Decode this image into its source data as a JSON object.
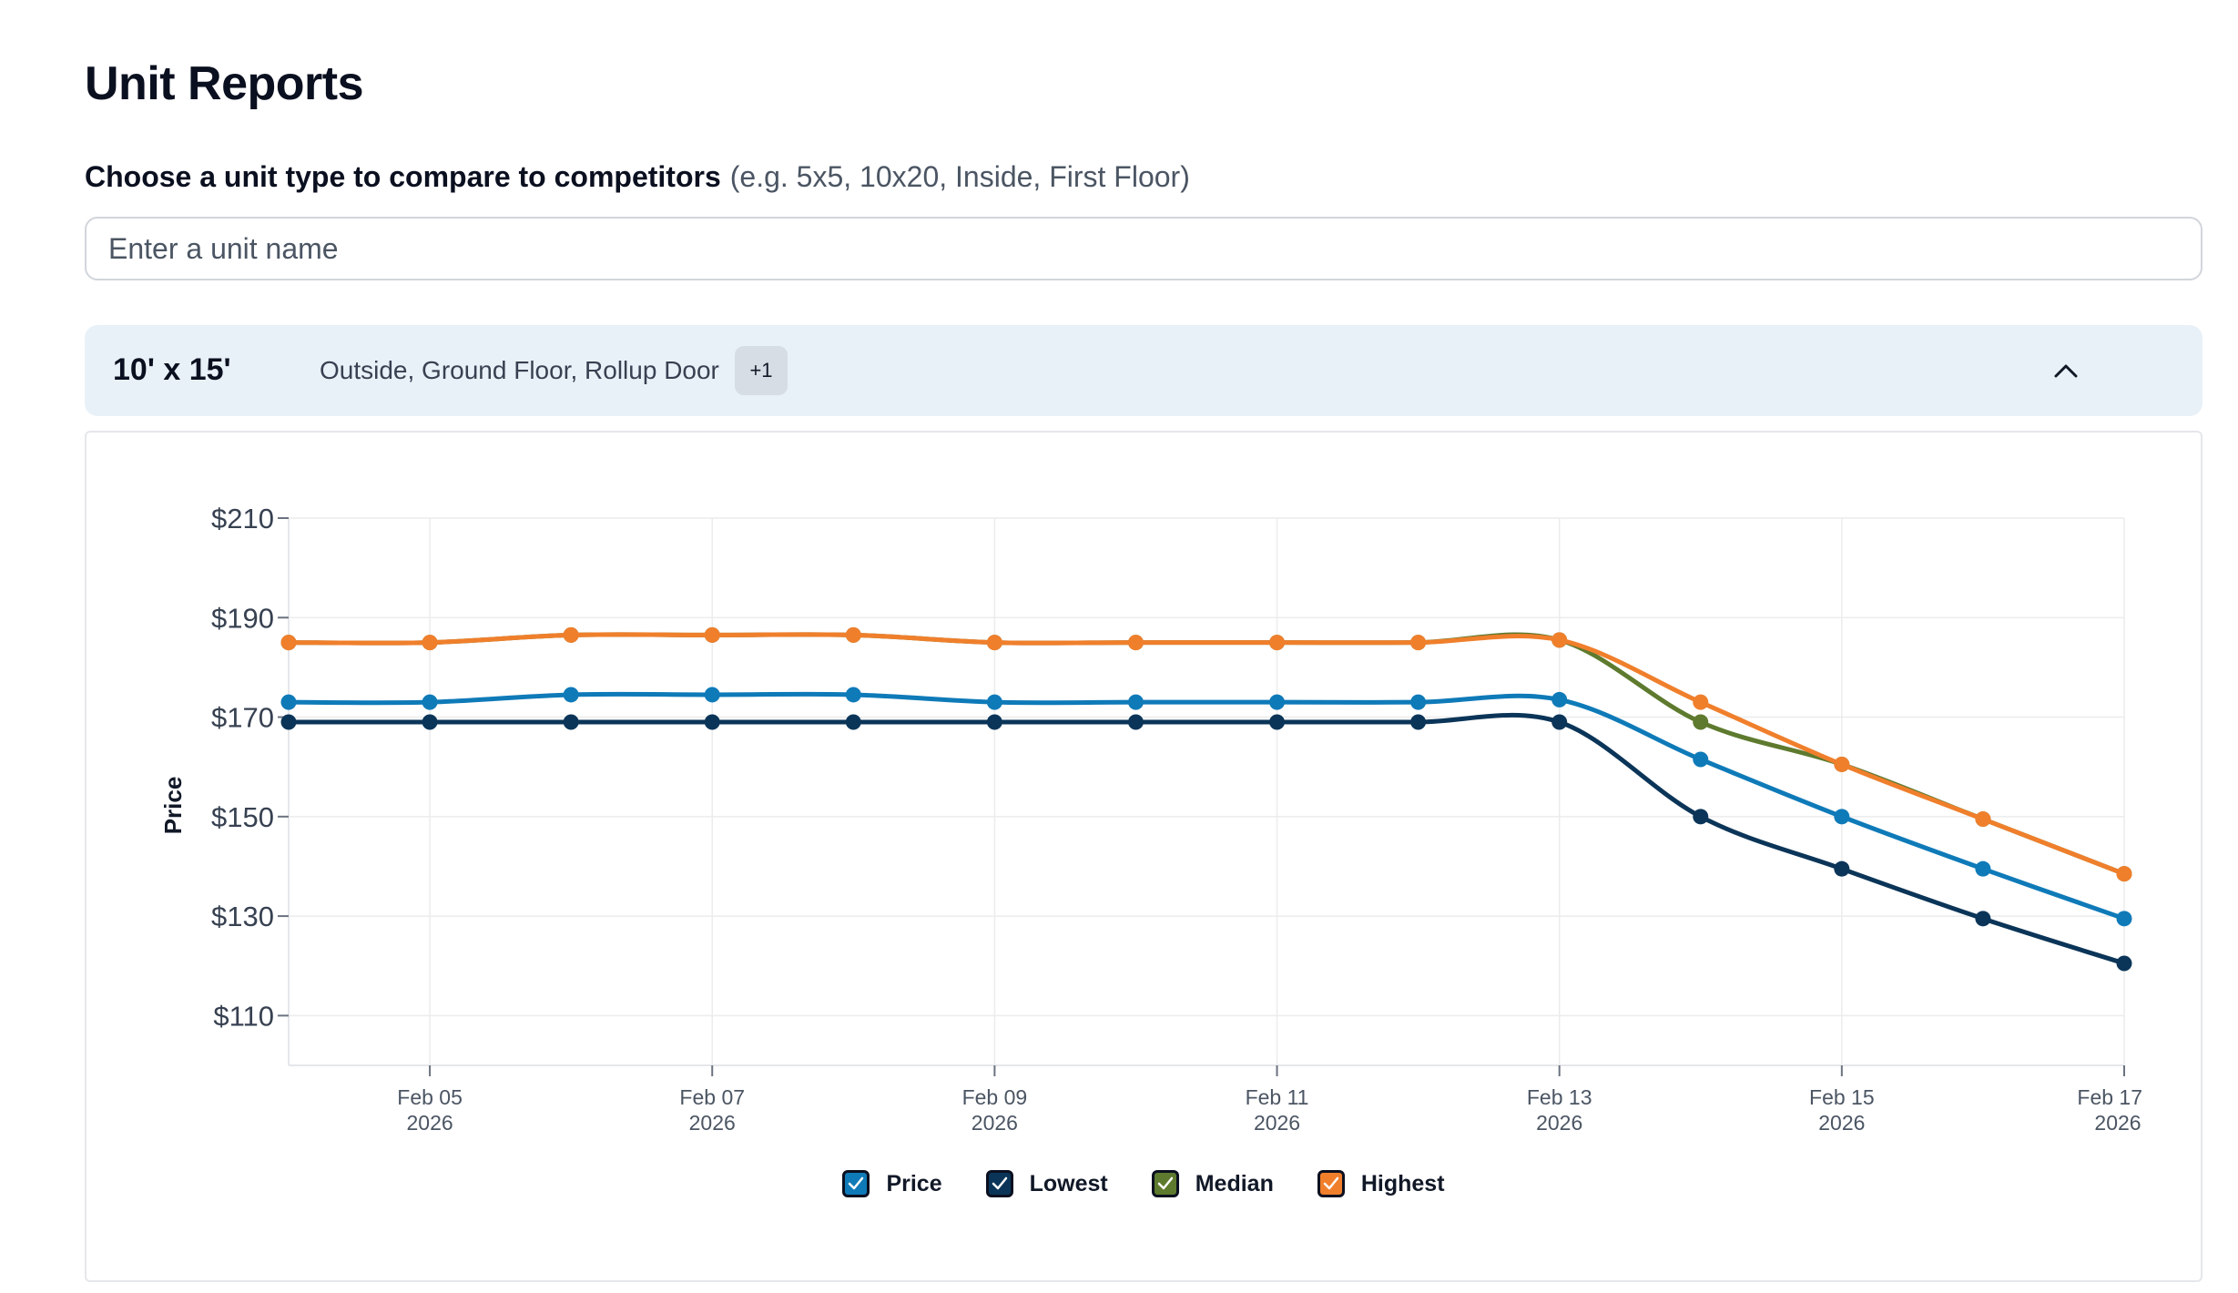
{
  "page": {
    "title": "Unit Reports"
  },
  "prompt": {
    "label": "Choose a unit type to compare to competitors",
    "hint": "(e.g. 5x5, 10x20, Inside, First Floor)"
  },
  "search": {
    "placeholder": "Enter a unit name",
    "value": ""
  },
  "unit": {
    "name": "10' x 15'",
    "features": "Outside, Ground Floor, Rollup Door",
    "more_badge": "+1",
    "expand_icon": "chevron-up-icon"
  },
  "chart_data": {
    "type": "line",
    "title": "",
    "xlabel": "",
    "ylabel": "Price",
    "x": [
      "2026-02-04",
      "2026-02-05",
      "2026-02-06",
      "2026-02-07",
      "2026-02-08",
      "2026-02-09",
      "2026-02-10",
      "2026-02-11",
      "2026-02-12",
      "2026-02-13",
      "2026-02-14",
      "2026-02-15",
      "2026-02-16",
      "2026-02-17"
    ],
    "x_ticks": [
      {
        "date": "2026-02-05",
        "line1": "Feb 05",
        "line2": "2026"
      },
      {
        "date": "2026-02-07",
        "line1": "Feb 07",
        "line2": "2026"
      },
      {
        "date": "2026-02-09",
        "line1": "Feb 09",
        "line2": "2026"
      },
      {
        "date": "2026-02-11",
        "line1": "Feb 11",
        "line2": "2026"
      },
      {
        "date": "2026-02-13",
        "line1": "Feb 13",
        "line2": "2026"
      },
      {
        "date": "2026-02-15",
        "line1": "Feb 15",
        "line2": "2026"
      },
      {
        "date": "2026-02-17",
        "line1": "Feb 17",
        "line2": "2026"
      }
    ],
    "y_ticks": [
      110,
      130,
      150,
      170,
      190,
      210
    ],
    "y_tick_labels": [
      "$110",
      "$130",
      "$150",
      "$170",
      "$190",
      "$210"
    ],
    "ylim": [
      100,
      210
    ],
    "grid": true,
    "legend_position": "bottom-center",
    "series": [
      {
        "name": "Price",
        "color": "#0f7ab8",
        "values": [
          173,
          173,
          174.5,
          174.5,
          174.5,
          173,
          173,
          173,
          173,
          173.5,
          161.5,
          150,
          139.5,
          129.5
        ]
      },
      {
        "name": "Lowest",
        "color": "#0b3558",
        "values": [
          169,
          169,
          169,
          169,
          169,
          169,
          169,
          169,
          169,
          169,
          150,
          139.5,
          129.5,
          120.5
        ]
      },
      {
        "name": "Median",
        "color": "#5e7a2e",
        "values": [
          185,
          185,
          186.5,
          186.5,
          186.5,
          185,
          185,
          185,
          185,
          185.5,
          169,
          160.5,
          149.5,
          138.5
        ]
      },
      {
        "name": "Highest",
        "color": "#f07f2c",
        "values": [
          185,
          185,
          186.5,
          186.5,
          186.5,
          185,
          185,
          185,
          185,
          185.5,
          173,
          160.5,
          149.5,
          138.5
        ]
      }
    ]
  }
}
